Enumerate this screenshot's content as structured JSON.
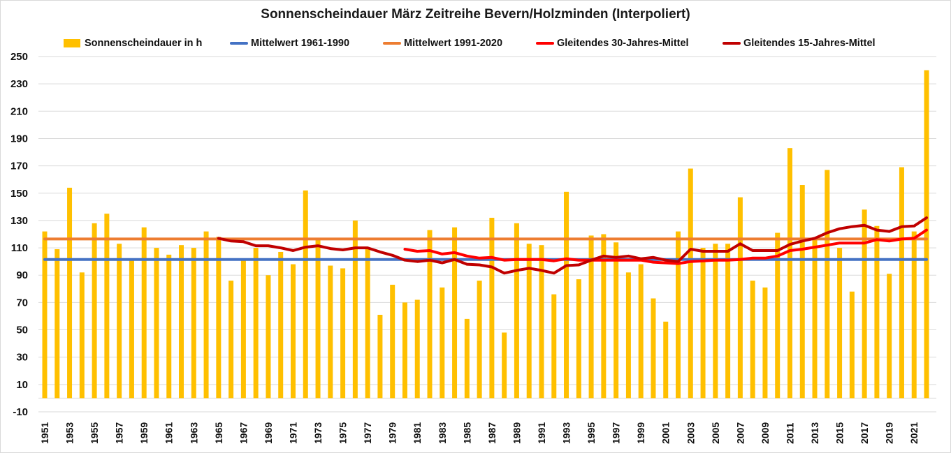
{
  "chart_data": {
    "type": "bar",
    "title": "Sonnenscheindauer März Zeitreihe Bevern/Holzminden (Interpoliert)",
    "xlabel": "",
    "ylabel": "",
    "ylim": [
      -10,
      250
    ],
    "yticks": [
      250,
      230,
      210,
      190,
      170,
      150,
      130,
      110,
      90,
      70,
      50,
      30,
      10,
      -10
    ],
    "grid": true,
    "legend_position": "top",
    "x": [
      1951,
      1952,
      1953,
      1954,
      1955,
      1956,
      1957,
      1958,
      1959,
      1960,
      1961,
      1962,
      1963,
      1964,
      1965,
      1966,
      1967,
      1968,
      1969,
      1970,
      1971,
      1972,
      1973,
      1974,
      1975,
      1976,
      1977,
      1978,
      1979,
      1980,
      1981,
      1982,
      1983,
      1984,
      1985,
      1986,
      1987,
      1988,
      1989,
      1990,
      1991,
      1992,
      1993,
      1994,
      1995,
      1996,
      1997,
      1998,
      1999,
      2000,
      2001,
      2002,
      2003,
      2004,
      2005,
      2006,
      2007,
      2008,
      2009,
      2010,
      2011,
      2012,
      2013,
      2014,
      2015,
      2016,
      2017,
      2018,
      2019,
      2020,
      2021,
      2022
    ],
    "xtick_labels": [
      "1951",
      "1953",
      "1955",
      "1957",
      "1959",
      "1961",
      "1963",
      "1965",
      "1967",
      "1969",
      "1971",
      "1973",
      "1975",
      "1977",
      "1979",
      "1981",
      "1983",
      "1985",
      "1987",
      "1989",
      "1991",
      "1993",
      "1995",
      "1997",
      "1999",
      "2001",
      "2003",
      "2005",
      "2007",
      "2009",
      "2011",
      "2013",
      "2015",
      "2017",
      "2019",
      "2021"
    ],
    "series": [
      {
        "name": "Sonnenscheindauer in h",
        "kind": "bar",
        "color": "#FFC000",
        "values": [
          122,
          109,
          154,
          92,
          128,
          135,
          113,
          101,
          125,
          110,
          105,
          112,
          110,
          122,
          118,
          86,
          101,
          110,
          90,
          107,
          98,
          152,
          116,
          97,
          95,
          130,
          109,
          61,
          83,
          70,
          72,
          123,
          81,
          125,
          58,
          86,
          132,
          48,
          128,
          113,
          112,
          76,
          151,
          87,
          119,
          120,
          114,
          92,
          98,
          73,
          56,
          122,
          168,
          110,
          113,
          113,
          147,
          86,
          81,
          121,
          183,
          156,
          117,
          167,
          110,
          78,
          138,
          126,
          91,
          169,
          122,
          240
        ]
      },
      {
        "name": "Mittelwert 1961-1990",
        "kind": "line",
        "color": "#4472C4",
        "values": [
          101.5,
          101.5,
          101.5,
          101.5,
          101.5,
          101.5,
          101.5,
          101.5,
          101.5,
          101.5,
          101.5,
          101.5,
          101.5,
          101.5,
          101.5,
          101.5,
          101.5,
          101.5,
          101.5,
          101.5,
          101.5,
          101.5,
          101.5,
          101.5,
          101.5,
          101.5,
          101.5,
          101.5,
          101.5,
          101.5,
          101.5,
          101.5,
          101.5,
          101.5,
          101.5,
          101.5,
          101.5,
          101.5,
          101.5,
          101.5,
          101.5,
          101.5,
          101.5,
          101.5,
          101.5,
          101.5,
          101.5,
          101.5,
          101.5,
          101.5,
          101.5,
          101.5,
          101.5,
          101.5,
          101.5,
          101.5,
          101.5,
          101.5,
          101.5,
          101.5,
          101.5,
          101.5,
          101.5,
          101.5,
          101.5,
          101.5,
          101.5,
          101.5,
          101.5,
          101.5,
          101.5,
          101.5
        ]
      },
      {
        "name": "Mittelwert 1991-2020",
        "kind": "line",
        "color": "#ED7D31",
        "values": [
          116.5,
          116.5,
          116.5,
          116.5,
          116.5,
          116.5,
          116.5,
          116.5,
          116.5,
          116.5,
          116.5,
          116.5,
          116.5,
          116.5,
          116.5,
          116.5,
          116.5,
          116.5,
          116.5,
          116.5,
          116.5,
          116.5,
          116.5,
          116.5,
          116.5,
          116.5,
          116.5,
          116.5,
          116.5,
          116.5,
          116.5,
          116.5,
          116.5,
          116.5,
          116.5,
          116.5,
          116.5,
          116.5,
          116.5,
          116.5,
          116.5,
          116.5,
          116.5,
          116.5,
          116.5,
          116.5,
          116.5,
          116.5,
          116.5,
          116.5,
          116.5,
          116.5,
          116.5,
          116.5,
          116.5,
          116.5,
          116.5,
          116.5,
          116.5,
          116.5,
          116.5,
          116.5,
          116.5,
          116.5,
          116.5,
          116.5,
          116.5,
          116.5,
          116.5,
          116.5,
          116.5,
          116.5
        ]
      },
      {
        "name": "Gleitendes 30-Jahres-Mittel",
        "kind": "line",
        "color": "#FF0000",
        "values": [
          null,
          null,
          null,
          null,
          null,
          null,
          null,
          null,
          null,
          null,
          null,
          null,
          null,
          null,
          null,
          null,
          null,
          null,
          null,
          null,
          null,
          null,
          null,
          null,
          null,
          null,
          null,
          null,
          null,
          109,
          107.5,
          108,
          105.5,
          106.5,
          104,
          102.5,
          103,
          101,
          101.5,
          101.5,
          101.5,
          100.5,
          102,
          101,
          101,
          101,
          101,
          101,
          101,
          99.5,
          99,
          98.5,
          100,
          100.5,
          101,
          101,
          101.5,
          102.5,
          102.5,
          104,
          108,
          109,
          110.5,
          112,
          113.5,
          113.5,
          113.5,
          116,
          115,
          116.5,
          117,
          123
        ]
      },
      {
        "name": "Gleitendes 15-Jahres-Mittel",
        "kind": "line",
        "color": "#C00000",
        "values": [
          null,
          null,
          null,
          null,
          null,
          null,
          null,
          null,
          null,
          null,
          null,
          null,
          null,
          null,
          117,
          115,
          114.5,
          111.5,
          111.5,
          110,
          108,
          110.5,
          111.5,
          109.5,
          108.5,
          110,
          110,
          107,
          104.5,
          101,
          100,
          101,
          99,
          101.5,
          98,
          97.5,
          96,
          91.5,
          93.5,
          95,
          93.5,
          91.5,
          97,
          97.5,
          101,
          104,
          103,
          104,
          102,
          103,
          101,
          100,
          109,
          107.5,
          107.5,
          107.5,
          113,
          108,
          108,
          108,
          112.5,
          115,
          117,
          121,
          124,
          125.5,
          126.5,
          123,
          122,
          125.5,
          126,
          132
        ]
      }
    ]
  }
}
